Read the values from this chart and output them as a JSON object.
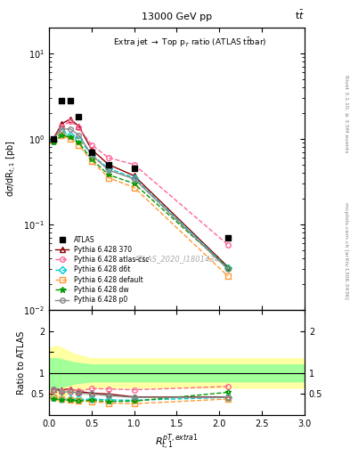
{
  "title_top": "13000 GeV pp",
  "title_right": "t$\\bar{t}$",
  "inner_title": "Extra jet → Top p$_T$ ratio (ATLAS t$\\bar{t}$bar)",
  "ylabel_main": "d$\\sigma$/dR$_{t,1}$ [pb]",
  "ylabel_ratio": "Ratio to ATLAS",
  "xlabel": "$R_{t,1}^{pT,extra1}$",
  "watermark": "ATLAS_2020_I1801434",
  "rivet_label": "Rivet 3.1.10, ≥ 3.5M events",
  "mcplots_label": "mcplots.cern.ch [arXiv:1306.3436]",
  "xlim": [
    0.0,
    3.0
  ],
  "ylim_main_log": [
    -2,
    1.3
  ],
  "ylim_ratio": [
    0.0,
    2.5
  ],
  "atlas_x": [
    0.05,
    0.15,
    0.25,
    0.35,
    0.5,
    0.7,
    1.0,
    2.1
  ],
  "atlas_y": [
    1.0,
    2.8,
    2.8,
    1.8,
    0.7,
    0.5,
    0.45,
    0.07
  ],
  "py370_x": [
    0.05,
    0.15,
    0.25,
    0.35,
    0.5,
    0.7,
    1.0,
    2.1
  ],
  "py370_y": [
    1.0,
    1.5,
    1.7,
    1.4,
    0.75,
    0.5,
    0.37,
    0.032
  ],
  "py370_color": "#8b0000",
  "py_atl_x": [
    0.05,
    0.15,
    0.25,
    0.35,
    0.5,
    0.7,
    1.0,
    2.1
  ],
  "py_atl_y": [
    1.0,
    1.4,
    1.6,
    1.35,
    0.85,
    0.6,
    0.5,
    0.058
  ],
  "py_atl_color": "#ff6699",
  "py_d6t_x": [
    0.05,
    0.15,
    0.25,
    0.35,
    0.5,
    0.7,
    1.0,
    2.1
  ],
  "py_d6t_y": [
    0.95,
    1.2,
    1.1,
    1.0,
    0.65,
    0.45,
    0.35,
    0.031
  ],
  "py_d6t_color": "#00cccc",
  "py_def_x": [
    0.05,
    0.15,
    0.25,
    0.35,
    0.5,
    0.7,
    1.0,
    2.1
  ],
  "py_def_y": [
    0.95,
    1.1,
    1.0,
    0.85,
    0.55,
    0.35,
    0.27,
    0.025
  ],
  "py_def_color": "#ff9933",
  "py_dw_x": [
    0.05,
    0.15,
    0.25,
    0.35,
    0.5,
    0.7,
    1.0,
    2.1
  ],
  "py_dw_y": [
    0.9,
    1.1,
    1.05,
    0.9,
    0.58,
    0.38,
    0.3,
    0.031
  ],
  "py_dw_color": "#009900",
  "py_p0_x": [
    0.05,
    0.15,
    0.25,
    0.35,
    0.5,
    0.7,
    1.0,
    2.1
  ],
  "py_p0_y": [
    1.0,
    1.3,
    1.3,
    1.1,
    0.65,
    0.43,
    0.34,
    0.03
  ],
  "py_p0_color": "#888888",
  "ratio_370": [
    0.62,
    0.6,
    0.62,
    0.56,
    0.52,
    0.5,
    0.43,
    0.43
  ],
  "ratio_atl": [
    0.6,
    0.58,
    0.6,
    0.57,
    0.63,
    0.62,
    0.6,
    0.68
  ],
  "ratio_d6t": [
    0.42,
    0.38,
    0.38,
    0.37,
    0.38,
    0.36,
    0.35,
    0.42
  ],
  "ratio_def": [
    0.42,
    0.38,
    0.35,
    0.33,
    0.32,
    0.28,
    0.27,
    0.38
  ],
  "ratio_dw": [
    0.38,
    0.35,
    0.35,
    0.33,
    0.35,
    0.32,
    0.33,
    0.54
  ],
  "ratio_p0": [
    0.62,
    0.55,
    0.55,
    0.52,
    0.5,
    0.46,
    0.42,
    0.42
  ],
  "band_x": [
    0.0,
    0.1,
    0.3,
    0.5,
    2.0,
    3.0
  ],
  "band_green_lo": [
    0.65,
    0.65,
    0.75,
    0.8,
    0.8,
    0.8
  ],
  "band_green_hi": [
    1.35,
    1.35,
    1.25,
    1.2,
    1.2,
    1.2
  ],
  "band_yellow_lo": [
    0.4,
    0.4,
    0.55,
    0.65,
    0.65,
    0.65
  ],
  "band_yellow_hi": [
    1.6,
    1.65,
    1.45,
    1.35,
    1.35,
    1.35
  ],
  "ratio_x": [
    0.05,
    0.15,
    0.25,
    0.35,
    0.5,
    0.7,
    1.0,
    2.1
  ]
}
